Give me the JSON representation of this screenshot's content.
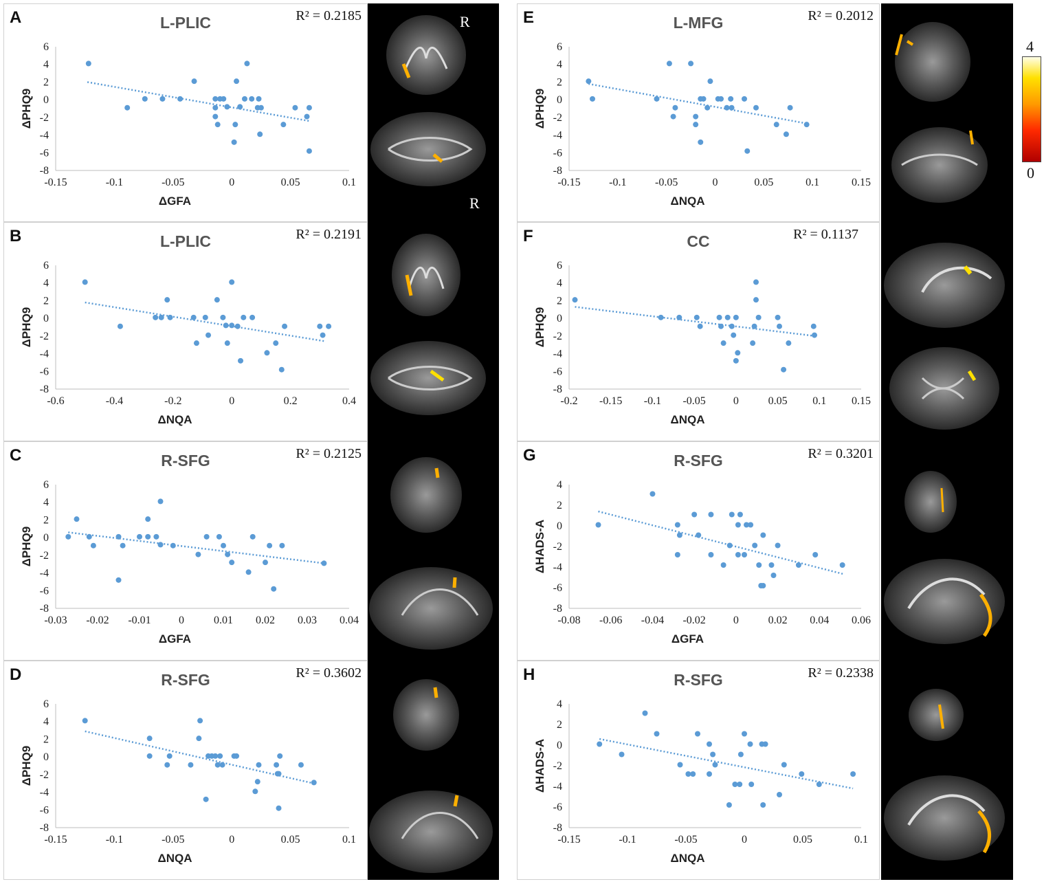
{
  "colorbar": {
    "max_label": "4",
    "min_label": "0"
  },
  "brain_labels": {
    "r_top": "R",
    "r_bottom": "R"
  },
  "panels": [
    {
      "letter": "A",
      "title": "L-PLIC",
      "r2": "R² = 0.2185"
    },
    {
      "letter": "B",
      "title": "L-PLIC",
      "r2": "R² = 0.2191"
    },
    {
      "letter": "C",
      "title": "R-SFG",
      "r2": "R² = 0.2125"
    },
    {
      "letter": "D",
      "title": "R-SFG",
      "r2": "R² = 0.3602"
    },
    {
      "letter": "E",
      "title": "L-MFG",
      "r2": "R² = 0.2012"
    },
    {
      "letter": "F",
      "title": "CC",
      "r2": "R² = 0.1137"
    },
    {
      "letter": "G",
      "title": "R-SFG",
      "r2": "R² = 0.3201"
    },
    {
      "letter": "H",
      "title": "R-SFG",
      "r2": "R² = 0.2338"
    }
  ],
  "chart_data": [
    {
      "type": "scatter",
      "title": "L-PLIC",
      "xlabel": "ΔGFA",
      "ylabel": "ΔPHQ9",
      "r2": "R² = 0.2185",
      "xlim": [
        -0.15,
        0.1
      ],
      "xticks": [
        "-0.15",
        "-0.1",
        "-0.05",
        "0",
        "0.05",
        "0.1"
      ],
      "xtick_values": [
        -0.15,
        -0.1,
        -0.05,
        0,
        0.05,
        0.1
      ],
      "ylim": [
        -8,
        6
      ],
      "yticks": [
        "6",
        "4",
        "2",
        "0",
        "-2",
        "-4",
        "-6",
        "-8"
      ],
      "ytick_values": [
        6,
        4,
        2,
        0,
        -2,
        -4,
        -6,
        -8
      ],
      "trend": [
        [
          -0.123,
          2.0
        ],
        [
          0.066,
          -2.4
        ]
      ],
      "points": [
        [
          -0.122,
          4.1
        ],
        [
          -0.089,
          -0.9
        ],
        [
          -0.074,
          0.1
        ],
        [
          -0.059,
          0.1
        ],
        [
          -0.044,
          0.1
        ],
        [
          -0.032,
          2.1
        ],
        [
          -0.014,
          0.1
        ],
        [
          -0.014,
          -0.9
        ],
        [
          -0.014,
          -1.9
        ],
        [
          -0.012,
          -2.8
        ],
        [
          -0.01,
          0.1
        ],
        [
          -0.007,
          0.1
        ],
        [
          -0.004,
          -0.8
        ],
        [
          0.003,
          -2.8
        ],
        [
          0.004,
          2.1
        ],
        [
          0.007,
          -0.8
        ],
        [
          0.011,
          0.1
        ],
        [
          0.013,
          4.1
        ],
        [
          0.017,
          0.1
        ],
        [
          0.022,
          -0.9
        ],
        [
          0.023,
          0.1
        ],
        [
          0.025,
          -0.9
        ],
        [
          0.002,
          -4.8
        ],
        [
          0.024,
          -3.9
        ],
        [
          0.044,
          -2.8
        ],
        [
          0.054,
          -0.9
        ],
        [
          0.064,
          -1.9
        ],
        [
          0.066,
          -0.9
        ],
        [
          0.066,
          -5.8
        ]
      ]
    },
    {
      "type": "scatter",
      "title": "L-PLIC",
      "xlabel": "ΔNQA",
      "ylabel": "ΔPHQ9",
      "r2": "R² = 0.2191",
      "xlim": [
        -0.6,
        0.4
      ],
      "xticks": [
        "-0.6",
        "-0.4",
        "-0.2",
        "0",
        "0.2",
        "0.4"
      ],
      "xtick_values": [
        -0.6,
        -0.4,
        -0.2,
        0,
        0.2,
        0.4
      ],
      "ylim": [
        -8,
        6
      ],
      "yticks": [
        "6",
        "4",
        "2",
        "0",
        "-2",
        "-4",
        "-6",
        "-8"
      ],
      "ytick_values": [
        6,
        4,
        2,
        0,
        -2,
        -4,
        -6,
        -8
      ],
      "trend": [
        [
          -0.5,
          1.8
        ],
        [
          0.32,
          -2.6
        ]
      ],
      "points": [
        [
          -0.5,
          4.1
        ],
        [
          -0.38,
          -0.9
        ],
        [
          -0.26,
          0.1
        ],
        [
          -0.24,
          0.1
        ],
        [
          -0.22,
          2.1
        ],
        [
          -0.21,
          0.1
        ],
        [
          -0.13,
          0.1
        ],
        [
          -0.12,
          -2.8
        ],
        [
          -0.09,
          0.1
        ],
        [
          -0.08,
          -1.9
        ],
        [
          -0.05,
          2.1
        ],
        [
          -0.03,
          0.1
        ],
        [
          -0.02,
          -0.8
        ],
        [
          -0.015,
          -2.8
        ],
        [
          0.0,
          4.1
        ],
        [
          0.0,
          -0.8
        ],
        [
          0.02,
          -0.9
        ],
        [
          0.03,
          -4.8
        ],
        [
          0.04,
          0.1
        ],
        [
          0.07,
          0.1
        ],
        [
          0.12,
          -3.9
        ],
        [
          0.15,
          -2.8
        ],
        [
          0.18,
          -0.9
        ],
        [
          0.17,
          -5.8
        ],
        [
          0.3,
          -0.9
        ],
        [
          0.31,
          -1.9
        ],
        [
          0.33,
          -0.9
        ]
      ]
    },
    {
      "type": "scatter",
      "title": "R-SFG",
      "xlabel": "ΔGFA",
      "ylabel": "ΔPHQ9",
      "r2": "R² = 0.2125",
      "xlim": [
        -0.03,
        0.04
      ],
      "xticks": [
        "-0.03",
        "-0.02",
        "-0.01",
        "0",
        "0.01",
        "0.02",
        "0.03",
        "0.04"
      ],
      "xtick_values": [
        -0.03,
        -0.02,
        -0.01,
        0,
        0.01,
        0.02,
        0.03,
        0.04
      ],
      "ylim": [
        -8,
        6
      ],
      "yticks": [
        "6",
        "4",
        "2",
        "0",
        "-2",
        "-4",
        "-6",
        "-8"
      ],
      "ytick_values": [
        6,
        4,
        2,
        0,
        -2,
        -4,
        -6,
        -8
      ],
      "trend": [
        [
          -0.027,
          0.6
        ],
        [
          0.034,
          -2.9
        ]
      ],
      "points": [
        [
          -0.027,
          0.1
        ],
        [
          -0.025,
          2.1
        ],
        [
          -0.022,
          0.1
        ],
        [
          -0.021,
          -0.9
        ],
        [
          -0.015,
          0.1
        ],
        [
          -0.015,
          -4.8
        ],
        [
          -0.014,
          -0.9
        ],
        [
          -0.01,
          0.1
        ],
        [
          -0.008,
          0.1
        ],
        [
          -0.008,
          2.1
        ],
        [
          -0.006,
          0.1
        ],
        [
          -0.005,
          4.1
        ],
        [
          -0.005,
          -0.8
        ],
        [
          -0.002,
          -0.9
        ],
        [
          0.004,
          -1.9
        ],
        [
          0.006,
          0.1
        ],
        [
          0.009,
          0.1
        ],
        [
          0.01,
          -0.9
        ],
        [
          0.011,
          -1.9
        ],
        [
          0.012,
          -2.8
        ],
        [
          0.016,
          -3.9
        ],
        [
          0.017,
          0.1
        ],
        [
          0.02,
          -2.8
        ],
        [
          0.021,
          -0.9
        ],
        [
          0.022,
          -5.8
        ],
        [
          0.024,
          -0.9
        ],
        [
          0.034,
          -2.9
        ]
      ]
    },
    {
      "type": "scatter",
      "title": "R-SFG",
      "xlabel": "ΔNQA",
      "ylabel": "ΔPHQ9",
      "r2": "R² = 0.3602",
      "xlim": [
        -0.15,
        0.1
      ],
      "xticks": [
        "-0.15",
        "-0.1",
        "-0.05",
        "0",
        "0.05",
        "0.1"
      ],
      "xtick_values": [
        -0.15,
        -0.1,
        -0.05,
        0,
        0.05,
        0.1
      ],
      "ylim": [
        -8,
        6
      ],
      "yticks": [
        "6",
        "4",
        "2",
        "0",
        "-2",
        "-4",
        "-6",
        "-8"
      ],
      "ytick_values": [
        6,
        4,
        2,
        0,
        -2,
        -4,
        -6,
        -8
      ],
      "trend": [
        [
          -0.125,
          2.9
        ],
        [
          0.07,
          -3.0
        ]
      ],
      "points": [
        [
          -0.125,
          4.1
        ],
        [
          -0.07,
          2.1
        ],
        [
          -0.07,
          0.1
        ],
        [
          -0.055,
          -0.9
        ],
        [
          -0.053,
          0.1
        ],
        [
          -0.035,
          -0.9
        ],
        [
          -0.028,
          2.1
        ],
        [
          -0.027,
          4.1
        ],
        [
          -0.02,
          0.1
        ],
        [
          -0.017,
          0.1
        ],
        [
          -0.014,
          0.1
        ],
        [
          -0.012,
          -0.9
        ],
        [
          -0.01,
          0.1
        ],
        [
          -0.008,
          -0.9
        ],
        [
          -0.022,
          -4.8
        ],
        [
          0.002,
          0.1
        ],
        [
          0.004,
          0.1
        ],
        [
          0.02,
          -3.9
        ],
        [
          0.022,
          -2.8
        ],
        [
          0.023,
          -0.9
        ],
        [
          0.038,
          -0.9
        ],
        [
          0.039,
          -1.9
        ],
        [
          0.04,
          -1.9
        ],
        [
          0.041,
          0.1
        ],
        [
          0.04,
          -5.8
        ],
        [
          0.059,
          -0.9
        ],
        [
          0.07,
          -2.9
        ]
      ]
    },
    {
      "type": "scatter",
      "title": "L-MFG",
      "xlabel": "ΔNQA",
      "ylabel": "ΔPHQ9",
      "r2": "R² = 0.2012",
      "xlim": [
        -0.15,
        0.15
      ],
      "xticks": [
        "-0.15",
        "-0.1",
        "-0.05",
        "0",
        "0.05",
        "0.1",
        "0.15"
      ],
      "xtick_values": [
        -0.15,
        -0.1,
        -0.05,
        0,
        0.05,
        0.1,
        0.15
      ],
      "ylim": [
        -8,
        6
      ],
      "yticks": [
        "6",
        "4",
        "2",
        "0",
        "-2",
        "-4",
        "-6",
        "-8"
      ],
      "ytick_values": [
        6,
        4,
        2,
        0,
        -2,
        -4,
        -6,
        -8
      ],
      "trend": [
        [
          -0.13,
          1.8
        ],
        [
          0.095,
          -2.7
        ]
      ],
      "points": [
        [
          -0.13,
          2.1
        ],
        [
          -0.126,
          0.1
        ],
        [
          -0.06,
          0.1
        ],
        [
          -0.047,
          4.1
        ],
        [
          -0.043,
          -1.9
        ],
        [
          -0.041,
          -0.9
        ],
        [
          -0.025,
          4.1
        ],
        [
          -0.02,
          -2.8
        ],
        [
          -0.02,
          -1.9
        ],
        [
          -0.015,
          0.1
        ],
        [
          -0.015,
          -4.8
        ],
        [
          -0.012,
          0.1
        ],
        [
          -0.008,
          -0.9
        ],
        [
          -0.005,
          2.1
        ],
        [
          0.003,
          0.1
        ],
        [
          0.006,
          0.1
        ],
        [
          0.012,
          -0.9
        ],
        [
          0.016,
          0.1
        ],
        [
          0.017,
          -0.9
        ],
        [
          0.03,
          0.1
        ],
        [
          0.033,
          -5.8
        ],
        [
          0.042,
          -0.9
        ],
        [
          0.063,
          -2.8
        ],
        [
          0.073,
          -3.9
        ],
        [
          0.077,
          -0.9
        ],
        [
          0.094,
          -2.8
        ]
      ]
    },
    {
      "type": "scatter",
      "title": "CC",
      "xlabel": "ΔNQA",
      "ylabel": "ΔPHQ9",
      "r2": "R² = 0.1137",
      "xlim": [
        -0.2,
        0.15
      ],
      "xticks": [
        "-0.2",
        "-0.15",
        "-0.1",
        "-0.05",
        "0",
        "0.05",
        "0.1",
        "0.15"
      ],
      "xtick_values": [
        -0.2,
        -0.15,
        -0.1,
        -0.05,
        0,
        0.05,
        0.1,
        0.15
      ],
      "ylim": [
        -8,
        6
      ],
      "yticks": [
        "6",
        "4",
        "2",
        "0",
        "-2",
        "-4",
        "-6",
        "-8"
      ],
      "ytick_values": [
        6,
        4,
        2,
        0,
        -2,
        -4,
        -6,
        -8
      ],
      "trend": [
        [
          -0.193,
          1.3
        ],
        [
          0.095,
          -2.0
        ]
      ],
      "points": [
        [
          -0.193,
          2.1
        ],
        [
          -0.09,
          0.1
        ],
        [
          -0.068,
          0.1
        ],
        [
          -0.047,
          0.1
        ],
        [
          -0.043,
          -0.9
        ],
        [
          -0.02,
          0.1
        ],
        [
          -0.018,
          -0.9
        ],
        [
          -0.015,
          -2.8
        ],
        [
          -0.01,
          0.1
        ],
        [
          -0.005,
          -0.9
        ],
        [
          -0.003,
          -1.9
        ],
        [
          0.0,
          -4.8
        ],
        [
          0.0,
          0.1
        ],
        [
          0.002,
          -3.9
        ],
        [
          0.02,
          -2.8
        ],
        [
          0.022,
          -0.9
        ],
        [
          0.024,
          4.1
        ],
        [
          0.024,
          2.1
        ],
        [
          0.027,
          0.1
        ],
        [
          0.05,
          0.1
        ],
        [
          0.052,
          -0.9
        ],
        [
          0.057,
          -5.8
        ],
        [
          0.063,
          -2.8
        ],
        [
          0.093,
          -0.9
        ],
        [
          0.094,
          -1.9
        ]
      ]
    },
    {
      "type": "scatter",
      "title": "R-SFG",
      "xlabel": "ΔGFA",
      "ylabel": "ΔHADS-A",
      "r2": "R² = 0.3201",
      "xlim": [
        -0.08,
        0.06
      ],
      "xticks": [
        "-0.08",
        "-0.06",
        "-0.04",
        "-0.02",
        "0",
        "0.02",
        "0.04",
        "0.06"
      ],
      "xtick_values": [
        -0.08,
        -0.06,
        -0.04,
        -0.02,
        0,
        0.02,
        0.04,
        0.06
      ],
      "ylim": [
        -8,
        4
      ],
      "yticks": [
        "4",
        "2",
        "0",
        "-2",
        "-4",
        "-6",
        "-8"
      ],
      "ytick_values": [
        4,
        2,
        0,
        -2,
        -4,
        -6,
        -8
      ],
      "trend": [
        [
          -0.066,
          1.4
        ],
        [
          0.052,
          -4.7
        ]
      ],
      "points": [
        [
          -0.066,
          0.1
        ],
        [
          -0.04,
          3.1
        ],
        [
          -0.028,
          0.1
        ],
        [
          -0.027,
          -0.9
        ],
        [
          -0.028,
          -2.8
        ],
        [
          -0.02,
          1.1
        ],
        [
          -0.018,
          -0.9
        ],
        [
          -0.012,
          1.1
        ],
        [
          -0.012,
          -2.8
        ],
        [
          -0.006,
          -3.8
        ],
        [
          -0.003,
          -1.9
        ],
        [
          -0.002,
          1.1
        ],
        [
          0.001,
          0.1
        ],
        [
          0.001,
          -2.8
        ],
        [
          0.002,
          1.1
        ],
        [
          0.004,
          -2.8
        ],
        [
          0.005,
          0.1
        ],
        [
          0.007,
          0.1
        ],
        [
          0.009,
          -1.9
        ],
        [
          0.011,
          -3.8
        ],
        [
          0.012,
          -5.8
        ],
        [
          0.013,
          -5.8
        ],
        [
          0.013,
          -0.9
        ],
        [
          0.017,
          -3.8
        ],
        [
          0.018,
          -4.8
        ],
        [
          0.02,
          -1.9
        ],
        [
          0.03,
          -3.8
        ],
        [
          0.038,
          -2.8
        ],
        [
          0.051,
          -3.8
        ]
      ]
    },
    {
      "type": "scatter",
      "title": "R-SFG",
      "xlabel": "ΔNQA",
      "ylabel": "ΔHADS-A",
      "r2": "R² = 0.2338",
      "xlim": [
        -0.15,
        0.1
      ],
      "xticks": [
        "-0.15",
        "-0.1",
        "-0.05",
        "0",
        "0.05",
        "0.1"
      ],
      "xtick_values": [
        -0.15,
        -0.1,
        -0.05,
        0,
        0.05,
        0.1
      ],
      "ylim": [
        -8,
        4
      ],
      "yticks": [
        "4",
        "2",
        "0",
        "-2",
        "-4",
        "-6",
        "-8"
      ],
      "ytick_values": [
        4,
        2,
        0,
        -2,
        -4,
        -6,
        -8
      ],
      "trend": [
        [
          -0.124,
          0.6
        ],
        [
          0.093,
          -4.2
        ]
      ],
      "points": [
        [
          -0.124,
          0.1
        ],
        [
          -0.105,
          -0.9
        ],
        [
          -0.085,
          3.1
        ],
        [
          -0.075,
          1.1
        ],
        [
          -0.055,
          -1.9
        ],
        [
          -0.048,
          -2.8
        ],
        [
          -0.044,
          -2.8
        ],
        [
          -0.04,
          1.1
        ],
        [
          -0.03,
          0.1
        ],
        [
          -0.03,
          -2.8
        ],
        [
          -0.027,
          -0.9
        ],
        [
          -0.025,
          -1.9
        ],
        [
          -0.013,
          -5.8
        ],
        [
          -0.008,
          -3.8
        ],
        [
          -0.004,
          -3.8
        ],
        [
          -0.003,
          -0.9
        ],
        [
          0.0,
          1.1
        ],
        [
          0.005,
          0.1
        ],
        [
          0.006,
          -3.8
        ],
        [
          0.015,
          0.1
        ],
        [
          0.016,
          -5.8
        ],
        [
          0.018,
          0.1
        ],
        [
          0.03,
          -4.8
        ],
        [
          0.034,
          -1.9
        ],
        [
          0.049,
          -2.8
        ],
        [
          0.064,
          -3.8
        ],
        [
          0.093,
          -2.8
        ]
      ]
    }
  ]
}
